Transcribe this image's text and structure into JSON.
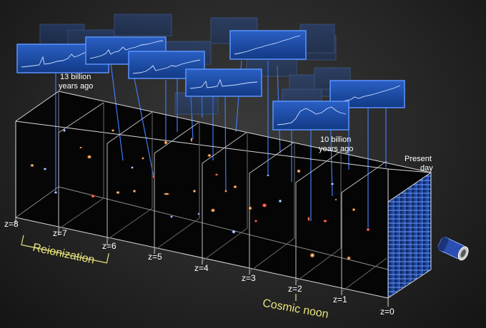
{
  "z_labels": [
    "z=8",
    "z=7",
    "z=6",
    "z=5",
    "z=4",
    "z=3",
    "z=2",
    "z=1",
    "z=0"
  ],
  "annotations": {
    "thirteen_billion_line1": "13 billion",
    "thirteen_billion_line2": "years ago",
    "ten_billion_line1": "10 billion",
    "ten_billion_line2": "years ago",
    "present_line1": "Present",
    "present_line2": "day"
  },
  "eras": {
    "reionization": "Reionization",
    "cosmic_noon": "Cosmic noon"
  },
  "colors": {
    "background": "#262626",
    "box_line": "#d9d9d9",
    "era_text": "#e8e27a",
    "spectrum_panel": "#1f4fa8",
    "spectrum_border": "#4f8bff",
    "sightline": "#3f7bf2"
  },
  "icons": {
    "telescope": "telescope-icon"
  }
}
